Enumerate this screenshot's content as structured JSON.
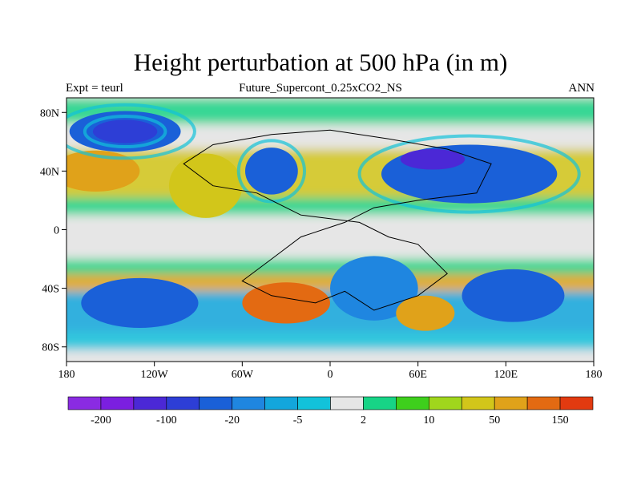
{
  "title": "Height perturbation at 500 hPa (in m)",
  "subtitle": "Future_Supercont_0.25xCO2_NS",
  "left_label": "Expt = teurl",
  "right_label": "ANN",
  "axes": {
    "lon_ticks": [
      {
        "value": -180,
        "label": "180"
      },
      {
        "value": -120,
        "label": "120W"
      },
      {
        "value": -60,
        "label": "60W"
      },
      {
        "value": 0,
        "label": "0"
      },
      {
        "value": 60,
        "label": "60E"
      },
      {
        "value": 120,
        "label": "120E"
      },
      {
        "value": 180,
        "label": "180"
      }
    ],
    "lat_ticks": [
      {
        "value": 80,
        "label": "80N"
      },
      {
        "value": 40,
        "label": "40N"
      },
      {
        "value": 0,
        "label": "0"
      },
      {
        "value": -40,
        "label": "40S"
      },
      {
        "value": -80,
        "label": "80S"
      }
    ],
    "lon_range": [
      -180,
      180
    ],
    "lat_range": [
      -90,
      90
    ]
  },
  "colorbar": {
    "colors": [
      "#8a2be2",
      "#7b1fe0",
      "#4b28d6",
      "#2d3ed6",
      "#1a60d8",
      "#1f86e0",
      "#13a6dc",
      "#12c2da",
      "#e6e6e6",
      "#17d486",
      "#3ecf1c",
      "#a0d61c",
      "#d2c61a",
      "#e0a21a",
      "#e36a12",
      "#e23a10"
    ],
    "labels": [
      {
        "boundary": 1,
        "text": "-200"
      },
      {
        "boundary": 3,
        "text": "-100"
      },
      {
        "boundary": 5,
        "text": "-20"
      },
      {
        "boundary": 7,
        "text": "-5"
      },
      {
        "boundary": 9,
        "text": "2"
      },
      {
        "boundary": 11,
        "text": "10"
      },
      {
        "boundary": 13,
        "text": "50"
      },
      {
        "boundary": 15,
        "text": "150"
      }
    ]
  },
  "map_features": [
    {
      "name": "nh-pacific-low",
      "lon": -140,
      "lat": 67,
      "rx": 38,
      "ry": 14,
      "color_index": 4
    },
    {
      "name": "nh-pacific-low-core",
      "lon": -140,
      "lat": 67,
      "rx": 22,
      "ry": 8,
      "color_index": 3
    },
    {
      "name": "nh-atlantic-low",
      "lon": -40,
      "lat": 40,
      "rx": 18,
      "ry": 16,
      "color_index": 4
    },
    {
      "name": "nh-asia-low",
      "lon": 95,
      "lat": 38,
      "rx": 60,
      "ry": 20,
      "color_index": 4
    },
    {
      "name": "nh-asia-low-core",
      "lon": 70,
      "lat": 48,
      "rx": 22,
      "ry": 7,
      "color_index": 2
    },
    {
      "name": "nh-pacific-high",
      "lon": -160,
      "lat": 40,
      "rx": 30,
      "ry": 14,
      "color_index": 13
    },
    {
      "name": "nh-america-high",
      "lon": -85,
      "lat": 30,
      "rx": 25,
      "ry": 22,
      "color_index": 12
    },
    {
      "name": "sh-pacific-low",
      "lon": -130,
      "lat": -50,
      "rx": 40,
      "ry": 17,
      "color_index": 4
    },
    {
      "name": "sh-atlantic-high",
      "lon": -30,
      "lat": -50,
      "rx": 30,
      "ry": 14,
      "color_index": 14
    },
    {
      "name": "sh-africa-low",
      "lon": 30,
      "lat": -40,
      "rx": 30,
      "ry": 22,
      "color_index": 5
    },
    {
      "name": "sh-indian-high",
      "lon": 65,
      "lat": -57,
      "rx": 20,
      "ry": 12,
      "color_index": 13
    },
    {
      "name": "sh-australia-low",
      "lon": 125,
      "lat": -45,
      "rx": 35,
      "ry": 18,
      "color_index": 4
    }
  ]
}
